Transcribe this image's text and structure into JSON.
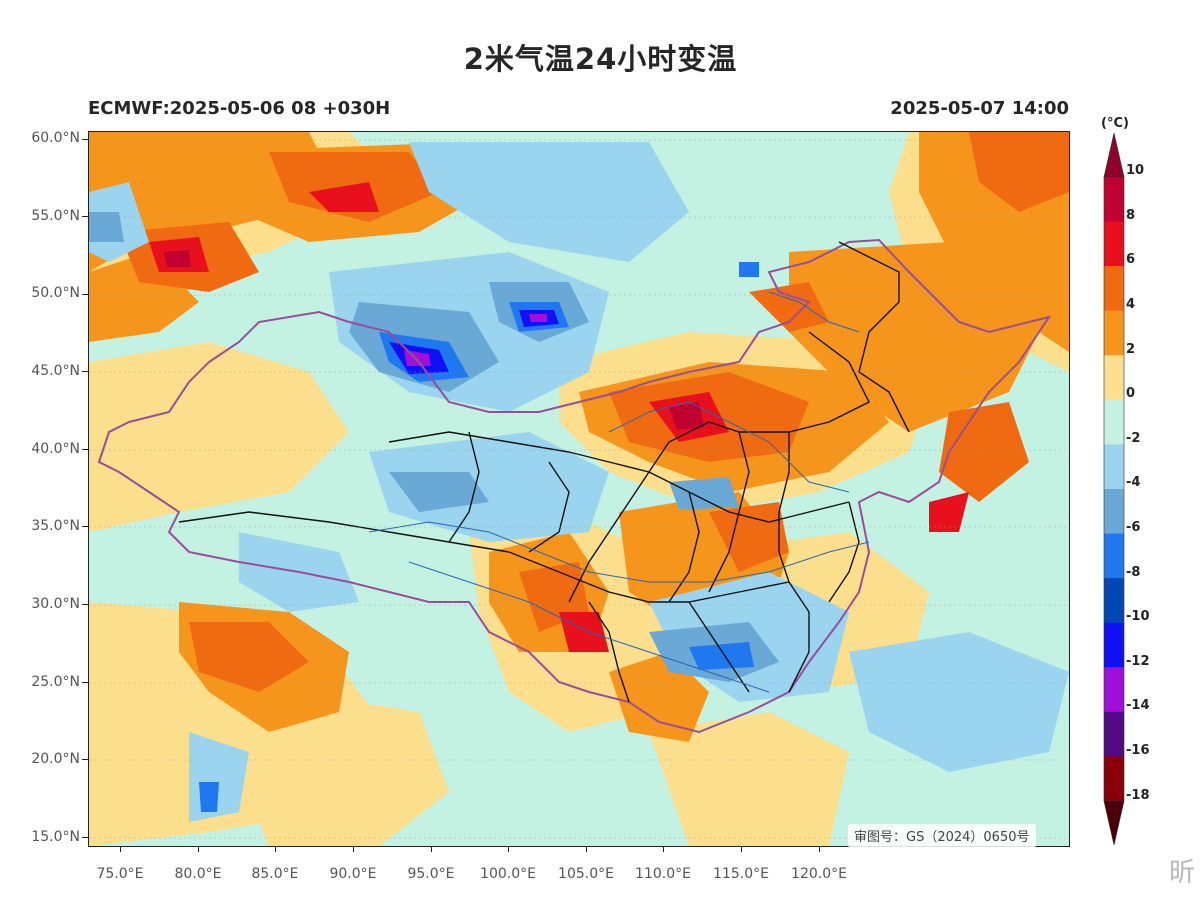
{
  "title": "2米气温24小时变温",
  "subtitle_left": "ECMWF:2025-05-06 08 +030H",
  "subtitle_right": "2025-05-07 14:00",
  "lat_labels": [
    "60.0°N",
    "55.0°N",
    "50.0°N",
    "45.0°N",
    "40.0°N",
    "35.0°N",
    "30.0°N",
    "25.0°N",
    "20.0°N",
    "15.0°N"
  ],
  "lon_labels": [
    "75.0°E",
    "80.0°E",
    "85.0°E",
    "90.0°E",
    "95.0°E",
    "100.0°E",
    "105.0°E",
    "110.0°E",
    "115.0°E",
    "120.0°E"
  ],
  "colorbar": {
    "unit": "(°C)",
    "labels": [
      "10",
      "8",
      "6",
      "4",
      "2",
      "0",
      "-2",
      "-4",
      "-6",
      "-8",
      "-10",
      "-12",
      "-14",
      "-16",
      "-18"
    ],
    "colors": [
      "#c00030",
      "#e8101c",
      "#f06a12",
      "#f5951c",
      "#fbdf8c",
      "#c4f2e2",
      "#9ad4ee",
      "#6aa8d6",
      "#1f78f0",
      "#0048b4",
      "#1010f5",
      "#a010d8",
      "#520a86",
      "#880008"
    ],
    "top_arrow_color": "#900028",
    "bottom_arrow_color": "#4a0008"
  },
  "approval_note": "审图号：GS（2024）0650号",
  "watermark_text": "昕"
}
